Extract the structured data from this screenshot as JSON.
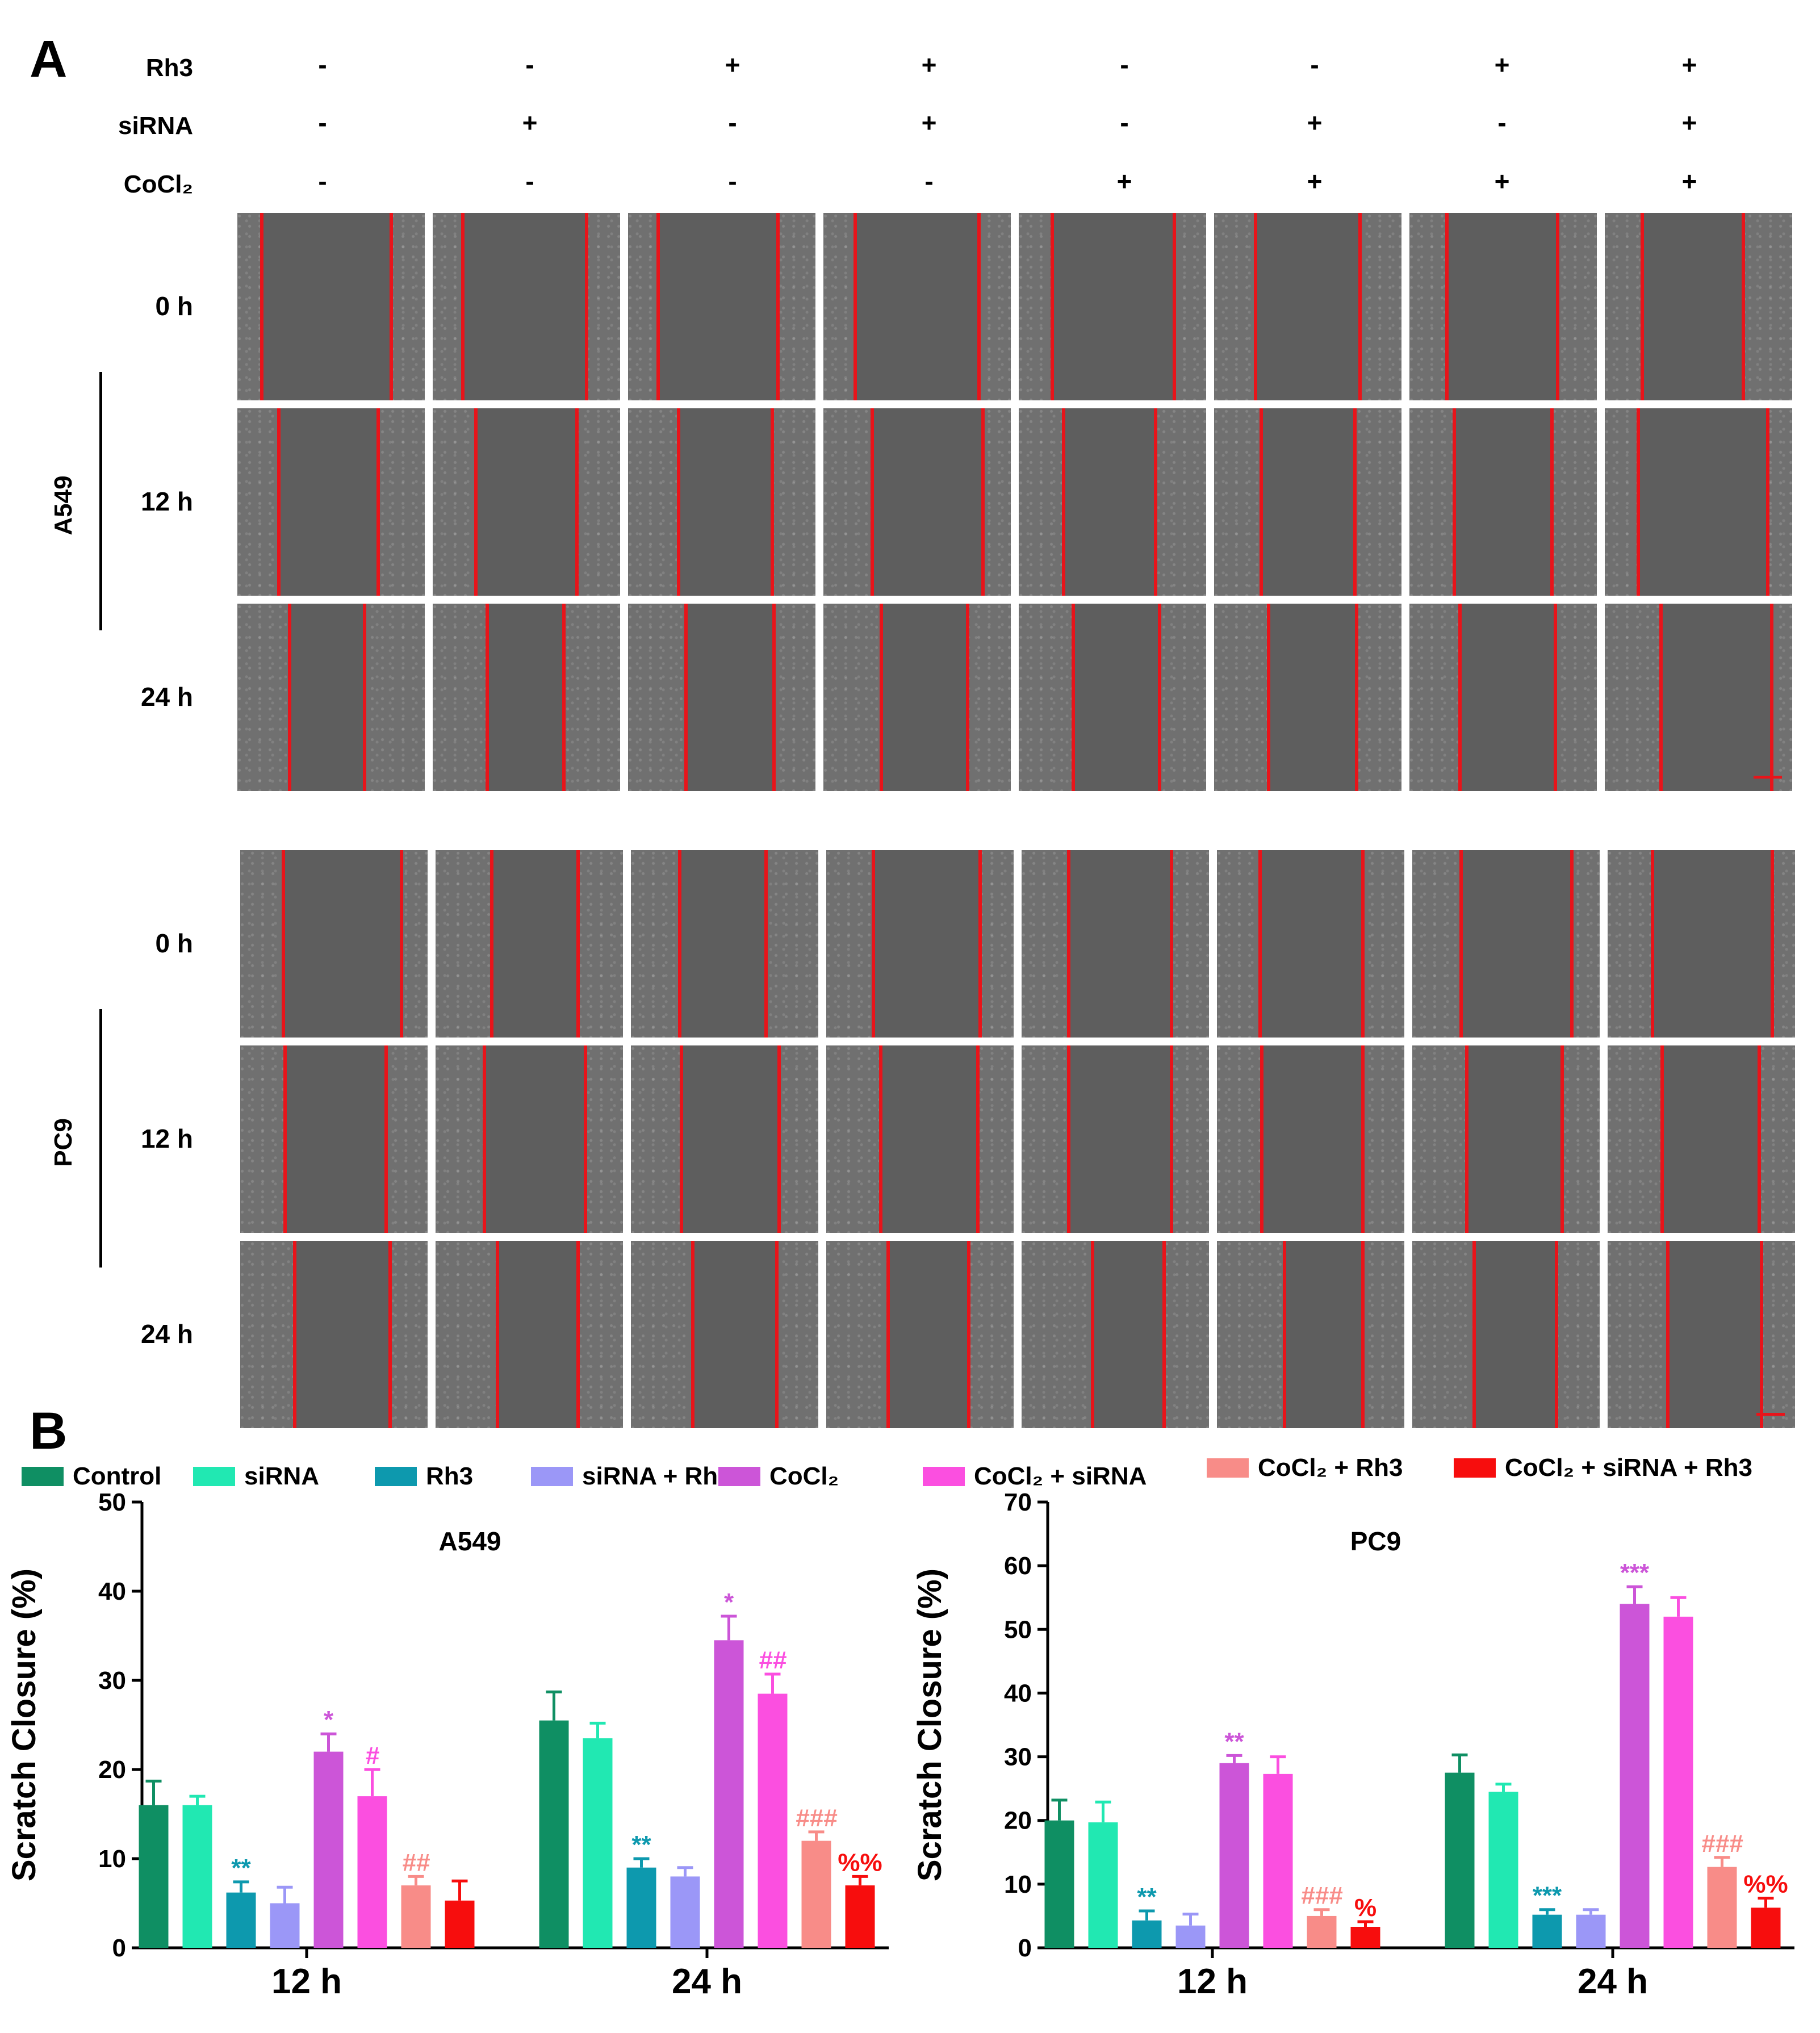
{
  "panel_a": {
    "letter": "A",
    "conditions": [
      {
        "label": "Rh3",
        "signs": [
          "-",
          "-",
          "+",
          "+",
          "-",
          "-",
          "+",
          "+"
        ]
      },
      {
        "label": "siRNA",
        "signs": [
          "-",
          "+",
          "-",
          "+",
          "-",
          "+",
          "-",
          "+"
        ]
      },
      {
        "label": "CoCl₂",
        "signs": [
          "-",
          "-",
          "-",
          "-",
          "+",
          "+",
          "+",
          "+"
        ]
      }
    ],
    "blocks": [
      {
        "cell_line": "A549",
        "times": [
          "0 h",
          "12 h",
          "24 h"
        ]
      },
      {
        "cell_line": "PC9",
        "times": [
          "0 h",
          "12 h",
          "24 h"
        ]
      }
    ]
  },
  "panel_b": {
    "letter": "B",
    "legend": [
      {
        "label": "Control",
        "color": "#0f8f63"
      },
      {
        "label": "siRNA",
        "color": "#21e8b2"
      },
      {
        "label": "Rh3",
        "color": "#0d99ae"
      },
      {
        "label": "siRNA + Rh3",
        "color": "#9b97f7"
      },
      {
        "label": "CoCl₂",
        "color": "#cc55d8"
      },
      {
        "label": "CoCl₂ + siRNA",
        "color": "#fb4fe0"
      },
      {
        "label": "CoCl₂ + Rh3",
        "color": "#f88c88"
      },
      {
        "label": "CoCl₂ + siRNA + Rh3",
        "color": "#f70d0d"
      }
    ]
  },
  "chart_data": [
    {
      "type": "bar",
      "title": "A549",
      "ylabel": "Scratch Closure (%)",
      "xlabel": "",
      "categories": [
        "12 h",
        "24 h"
      ],
      "ylim": [
        0,
        50
      ],
      "yticks": [
        0,
        10,
        20,
        30,
        40,
        50
      ],
      "series": [
        {
          "name": "Control",
          "color": "#0f8f63",
          "values": [
            16,
            25.5
          ],
          "errors": [
            2.7,
            3.2
          ],
          "annotations": [
            "",
            ""
          ]
        },
        {
          "name": "siRNA",
          "color": "#21e8b2",
          "values": [
            16,
            23.5
          ],
          "errors": [
            1.0,
            1.7
          ],
          "annotations": [
            "",
            ""
          ]
        },
        {
          "name": "Rh3",
          "color": "#0d99ae",
          "values": [
            6.2,
            9
          ],
          "errors": [
            1.2,
            1.0
          ],
          "annotations": [
            "**",
            "**"
          ],
          "annotation_color": "#0d99ae"
        },
        {
          "name": "siRNA + Rh3",
          "color": "#9b97f7",
          "values": [
            5,
            8
          ],
          "errors": [
            1.8,
            1.0
          ],
          "annotations": [
            "",
            ""
          ]
        },
        {
          "name": "CoCl₂",
          "color": "#cc55d8",
          "values": [
            22,
            34.5
          ],
          "errors": [
            2.0,
            2.7
          ],
          "annotations": [
            "*",
            "*"
          ],
          "annotation_color": "#cc55d8"
        },
        {
          "name": "CoCl₂ + siRNA",
          "color": "#fb4fe0",
          "values": [
            17,
            28.5
          ],
          "errors": [
            3.0,
            2.2
          ],
          "annotations": [
            "#",
            "##"
          ],
          "annotation_color": "#fb4fe0"
        },
        {
          "name": "CoCl₂ + Rh3",
          "color": "#f88c88",
          "values": [
            7,
            12
          ],
          "errors": [
            1.0,
            1.0
          ],
          "annotations": [
            "##",
            "###"
          ],
          "annotation_color": "#f88c88"
        },
        {
          "name": "CoCl₂ + siRNA + Rh3",
          "color": "#f70d0d",
          "values": [
            5.3,
            7
          ],
          "errors": [
            2.2,
            1.0
          ],
          "annotations": [
            "",
            "%%"
          ],
          "annotation_color": "#f70d0d"
        }
      ]
    },
    {
      "type": "bar",
      "title": "PC9",
      "ylabel": "Scratch Closure (%)",
      "xlabel": "",
      "categories": [
        "12 h",
        "24 h"
      ],
      "ylim": [
        0,
        70
      ],
      "yticks": [
        0,
        10,
        20,
        30,
        40,
        50,
        60,
        70
      ],
      "series": [
        {
          "name": "Control",
          "color": "#0f8f63",
          "values": [
            20,
            27.5
          ],
          "errors": [
            3.2,
            2.8
          ],
          "annotations": [
            "",
            ""
          ]
        },
        {
          "name": "siRNA",
          "color": "#21e8b2",
          "values": [
            19.7,
            24.5
          ],
          "errors": [
            3.2,
            1.2
          ],
          "annotations": [
            "",
            ""
          ]
        },
        {
          "name": "Rh3",
          "color": "#0d99ae",
          "values": [
            4.3,
            5.2
          ],
          "errors": [
            1.5,
            0.8
          ],
          "annotations": [
            "**",
            "***"
          ],
          "annotation_color": "#0d99ae"
        },
        {
          "name": "siRNA + Rh3",
          "color": "#9b97f7",
          "values": [
            3.5,
            5.2
          ],
          "errors": [
            1.8,
            0.8
          ],
          "annotations": [
            "",
            ""
          ]
        },
        {
          "name": "CoCl₂",
          "color": "#cc55d8",
          "values": [
            29,
            54
          ],
          "errors": [
            1.2,
            2.7
          ],
          "annotations": [
            "**",
            "***"
          ],
          "annotation_color": "#cc55d8"
        },
        {
          "name": "CoCl₂ + siRNA",
          "color": "#fb4fe0",
          "values": [
            27.3,
            52
          ],
          "errors": [
            2.7,
            3.0
          ],
          "annotations": [
            "",
            ""
          ]
        },
        {
          "name": "CoCl₂ + Rh3",
          "color": "#f88c88",
          "values": [
            5,
            12.7
          ],
          "errors": [
            1.0,
            1.5
          ],
          "annotations": [
            "###",
            "###"
          ],
          "annotation_color": "#f88c88"
        },
        {
          "name": "CoCl₂ + siRNA + Rh3",
          "color": "#f70d0d",
          "values": [
            3.3,
            6.3
          ],
          "errors": [
            0.8,
            1.5
          ],
          "annotations": [
            "%",
            "%%"
          ],
          "annotation_color": "#f70d0d"
        }
      ]
    }
  ]
}
